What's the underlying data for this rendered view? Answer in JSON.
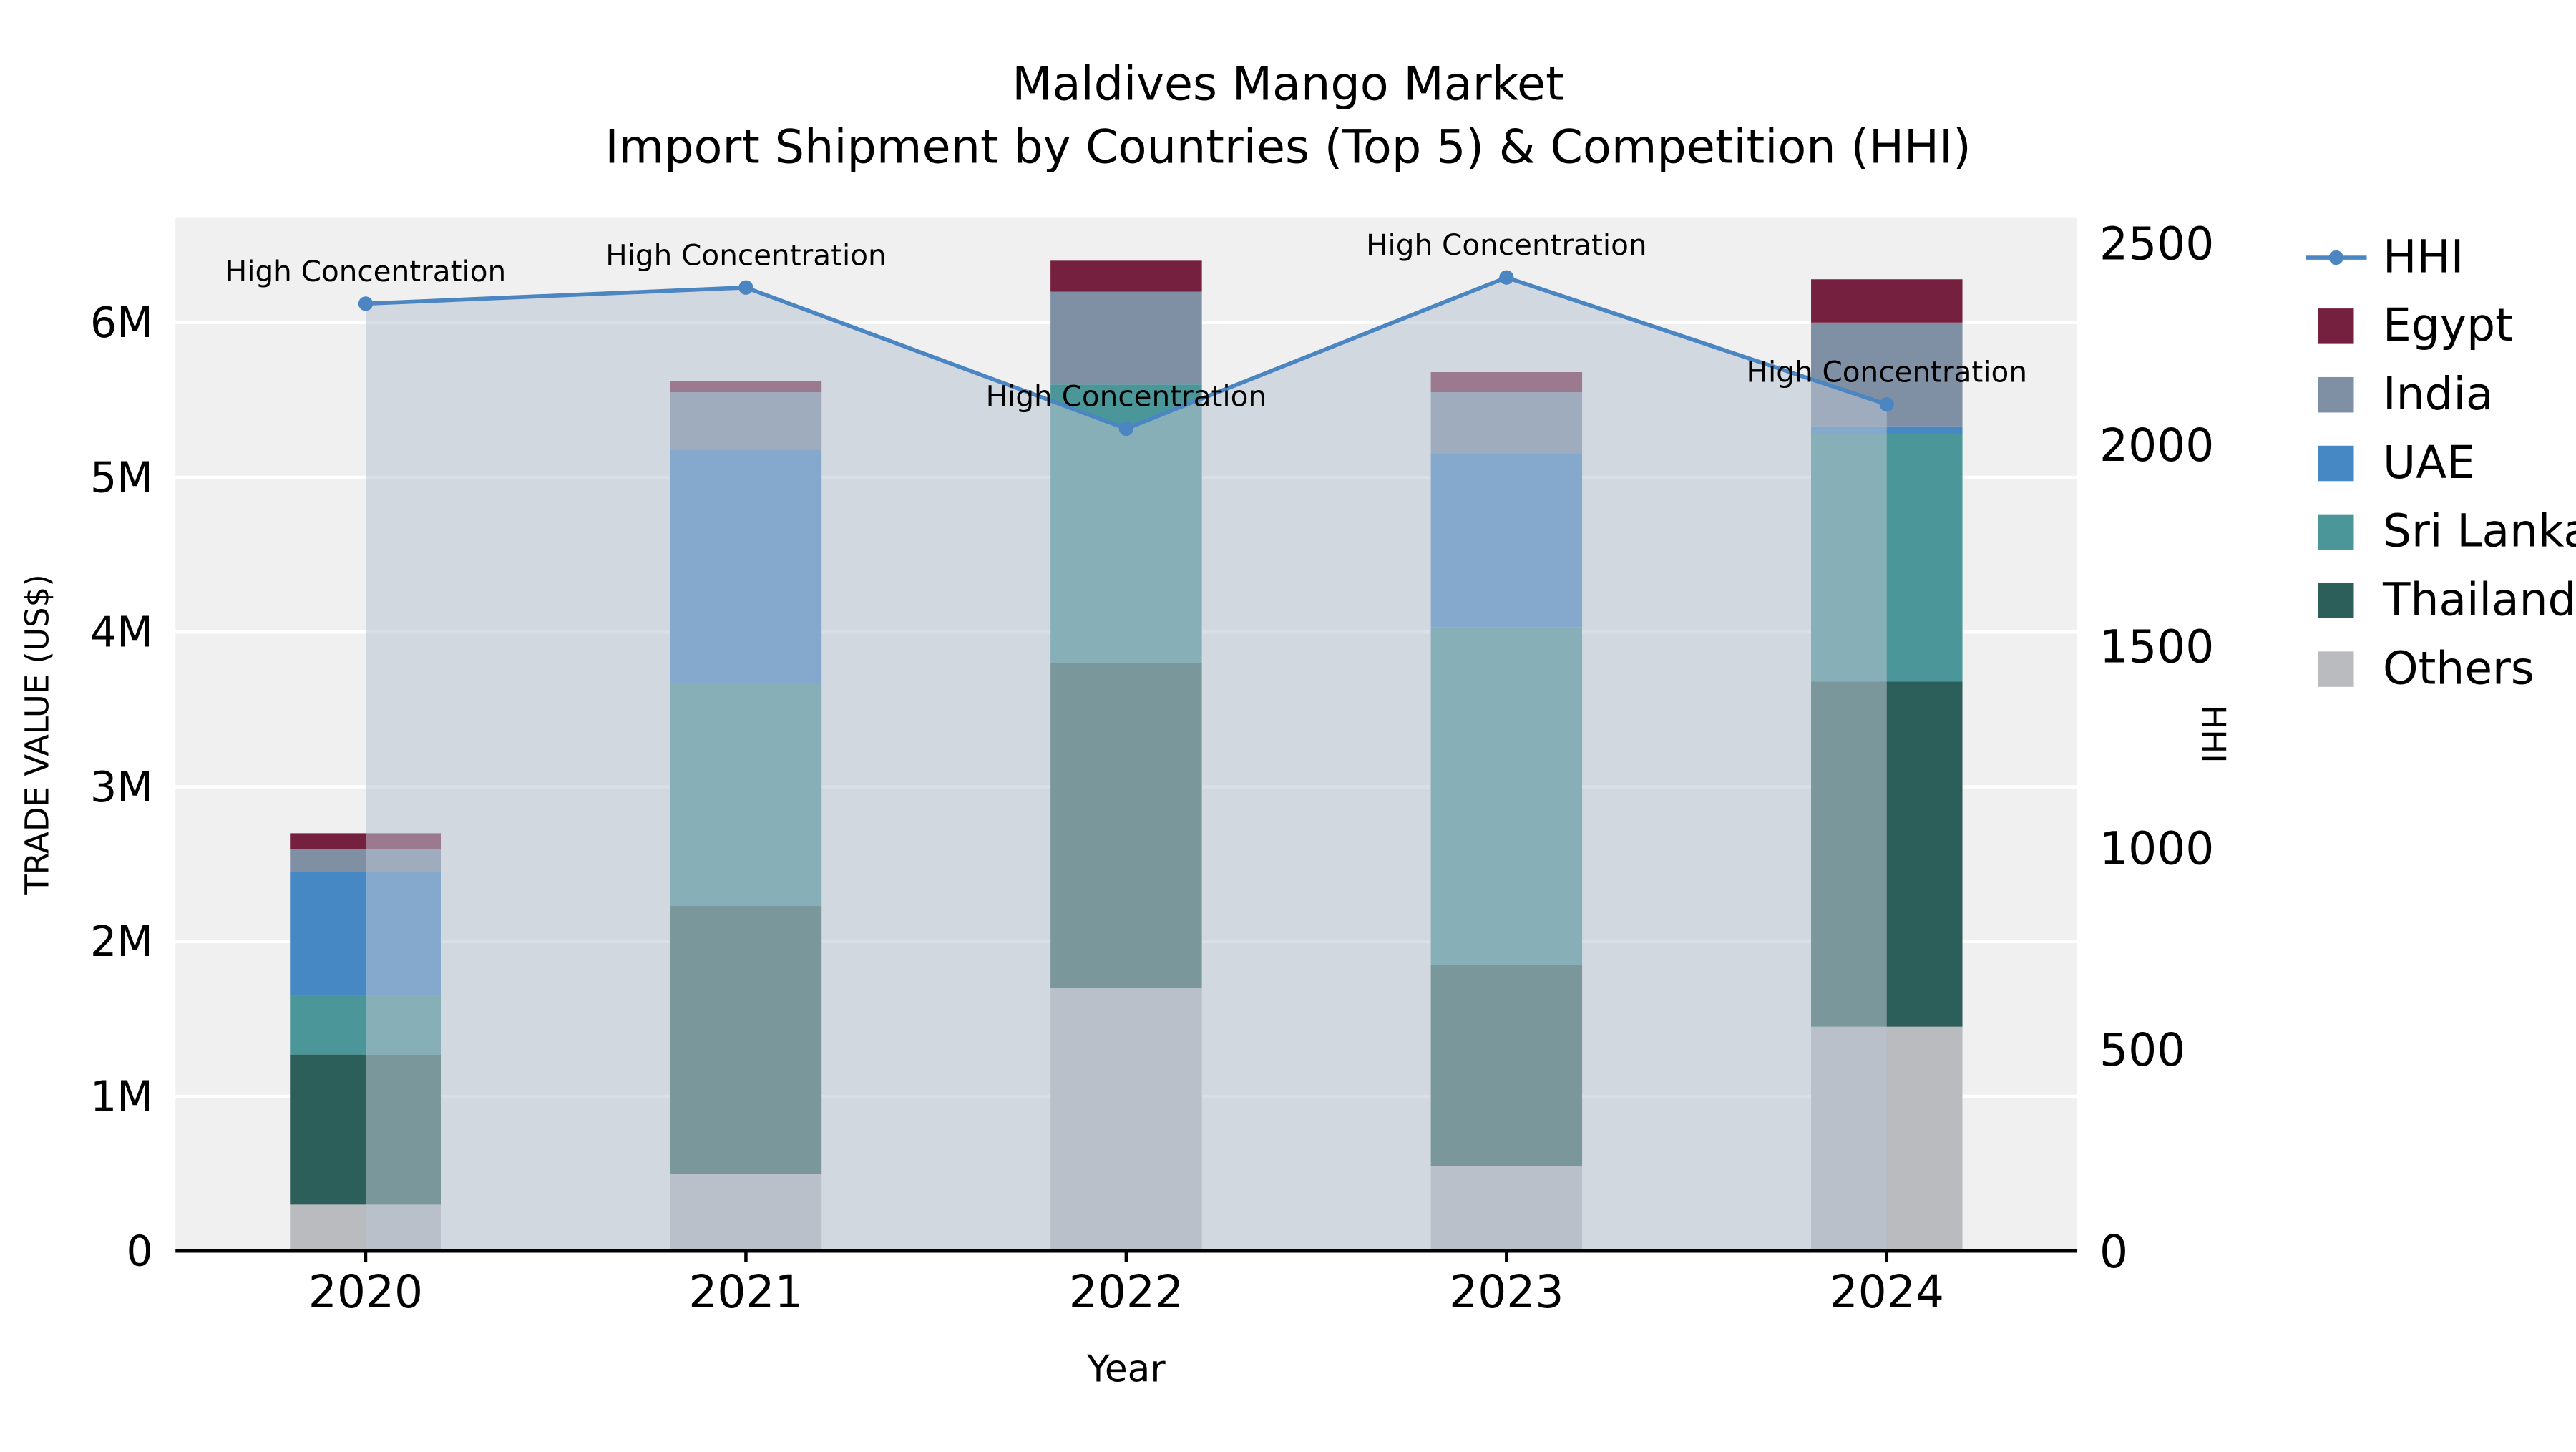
{
  "chart_data": {
    "type": "bar",
    "subtype": "stacked-bar-with-line",
    "title_line1": "Maldives Mango Market",
    "title_line2": "Import Shipment by Countries (Top 5) & Competition (HHI)",
    "xlabel": "Year",
    "ylabel_left": "TRADE VALUE (US$)",
    "ylabel_right": "HHI",
    "categories": [
      "2020",
      "2021",
      "2022",
      "2023",
      "2024"
    ],
    "stack_order_bottom_to_top": [
      "Others",
      "Thailand",
      "Sri Lanka",
      "UAE",
      "India",
      "Egypt"
    ],
    "series": [
      {
        "name": "Others",
        "color": "#b9bbbe",
        "values": [
          300000,
          500000,
          1700000,
          550000,
          1450000
        ]
      },
      {
        "name": "Thailand",
        "color": "#2d5f5a",
        "values": [
          970000,
          1730000,
          2100000,
          1300000,
          2230000
        ]
      },
      {
        "name": "Sri Lanka",
        "color": "#4b9698",
        "values": [
          380000,
          1440000,
          1800000,
          2180000,
          1600000
        ]
      },
      {
        "name": "UAE",
        "color": "#4688c4",
        "values": [
          800000,
          1510000,
          0,
          1120000,
          50000
        ]
      },
      {
        "name": "India",
        "color": "#7f8fa4",
        "values": [
          150000,
          370000,
          600000,
          400000,
          670000
        ]
      },
      {
        "name": "Egypt",
        "color": "#75203f",
        "values": [
          100000,
          70000,
          200000,
          130000,
          280000
        ]
      }
    ],
    "line_series": {
      "name": "HHI",
      "color": "#4b86c2",
      "fill_color": "#b9c5d4",
      "fill_opacity": 0.55,
      "values": [
        2350,
        2390,
        2040,
        2415,
        2100
      ],
      "annotation_text": "High Concentration"
    },
    "left_axis": {
      "tick_labels": [
        "0",
        "1M",
        "2M",
        "3M",
        "4M",
        "5M",
        "6M"
      ],
      "tick_values": [
        0,
        1000000,
        2000000,
        3000000,
        4000000,
        5000000,
        6000000
      ],
      "max": 6680000
    },
    "right_axis": {
      "tick_labels": [
        "0",
        "500",
        "1000",
        "1500",
        "2000",
        "2500"
      ],
      "tick_values": [
        0,
        500,
        1000,
        1500,
        2000,
        2500
      ],
      "max": 2564
    },
    "legend": [
      {
        "label": "HHI",
        "type": "line",
        "color": "#4b86c2"
      },
      {
        "label": "Egypt",
        "type": "swatch",
        "color": "#75203f"
      },
      {
        "label": "India",
        "type": "swatch",
        "color": "#7f8fa4"
      },
      {
        "label": "UAE",
        "type": "swatch",
        "color": "#4688c4"
      },
      {
        "label": "Sri Lanka",
        "type": "swatch",
        "color": "#4b9698"
      },
      {
        "label": "Thailand",
        "type": "swatch",
        "color": "#2d5f5a"
      },
      {
        "label": "Others",
        "type": "swatch",
        "color": "#b9bbbe"
      }
    ],
    "colors": {
      "plot_background": "#f0f0f0",
      "gridline": "#ffffff",
      "axis_line": "#000000"
    }
  }
}
